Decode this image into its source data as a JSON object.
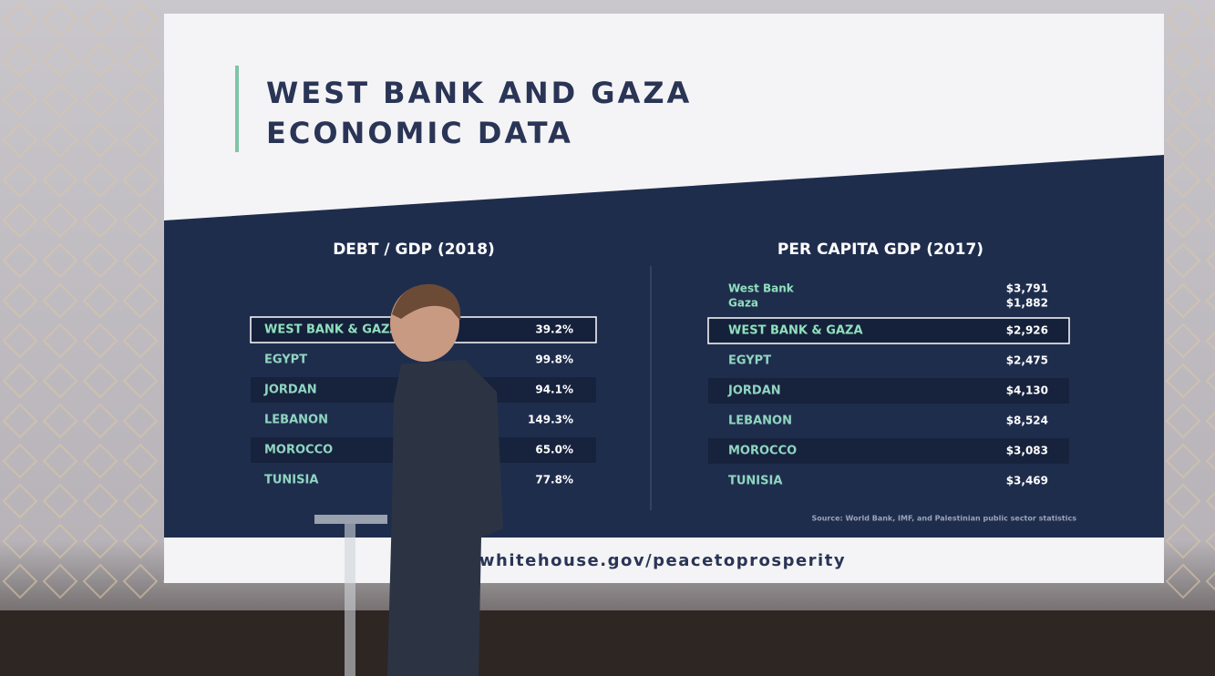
{
  "slide": {
    "title": [
      "WEST BANK AND GAZA",
      "ECONOMIC DATA"
    ],
    "debt_table": {
      "title": "DEBT / GDP (2018)",
      "rows": [
        [
          "WEST BANK & GAZA",
          "39.2%"
        ],
        [
          "EGYPT",
          "99.8%"
        ],
        [
          "JORDAN",
          "94.1%"
        ],
        [
          "LEBANON",
          "149.3%"
        ],
        [
          "MOROCCO",
          "65.0%"
        ],
        [
          "TUNISIA",
          "77.8%"
        ]
      ]
    },
    "gdp_table": {
      "title": "PER CAPITA GDP (2017)",
      "sub_rows": [
        [
          "West Bank",
          "$3,791"
        ],
        [
          "Gaza",
          "$1,882"
        ]
      ],
      "rows": [
        [
          "WEST BANK & GAZA",
          "$2,926"
        ],
        [
          "EGYPT",
          "$2,475"
        ],
        [
          "JORDAN",
          "$4,130"
        ],
        [
          "LEBANON",
          "$8,524"
        ],
        [
          "MOROCCO",
          "$3,083"
        ],
        [
          "TUNISIA",
          "$3,469"
        ]
      ]
    },
    "source": "Source: World Bank, IMF, and Palestinian public sector statistics",
    "url": "whitehouse.gov/peacetoprosperity"
  }
}
